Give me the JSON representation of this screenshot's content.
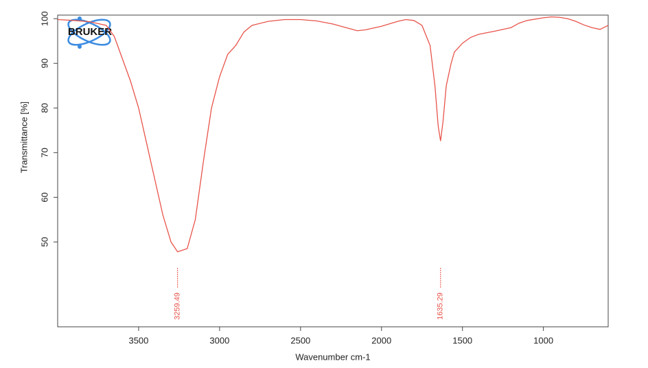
{
  "chart_data": {
    "type": "line",
    "logo": "BRUKER",
    "x_label": "Wavenumber cm-1",
    "y_label": "Transmittance [%]",
    "color": "#e8534a",
    "x": [
      4000,
      3900,
      3800,
      3700,
      3650,
      3600,
      3550,
      3500,
      3450,
      3400,
      3350,
      3300,
      3259.49,
      3200,
      3150,
      3100,
      3050,
      3000,
      2950,
      2900,
      2850,
      2800,
      2700,
      2600,
      2500,
      2400,
      2300,
      2200,
      2150,
      2100,
      2000,
      1900,
      1850,
      1800,
      1750,
      1700,
      1670,
      1650,
      1635.29,
      1620,
      1600,
      1570,
      1550,
      1500,
      1450,
      1400,
      1300,
      1200,
      1150,
      1100,
      1000,
      950,
      900,
      850,
      800,
      750,
      700,
      650,
      600
    ],
    "values": [
      99.8,
      99.6,
      99.3,
      98.5,
      96,
      91,
      86,
      80,
      72,
      64,
      56,
      50,
      47.8,
      48.5,
      55,
      68,
      80,
      87,
      92,
      94,
      97,
      98.5,
      99.4,
      99.8,
      99.8,
      99.5,
      98.8,
      97.8,
      97.3,
      97.5,
      98.3,
      99.4,
      99.8,
      99.6,
      98.5,
      94,
      85,
      76,
      72.6,
      77,
      85,
      90,
      92.5,
      94.5,
      95.8,
      96.5,
      97.2,
      98,
      99,
      99.6,
      100.2,
      100.4,
      100.3,
      100,
      99.4,
      98.6,
      98,
      97.6,
      98.5
    ],
    "peaks": [
      3259.49,
      1635.29
    ],
    "xlim": [
      4000,
      600
    ],
    "xticks": [
      3500,
      3000,
      2500,
      2000,
      1500,
      1000
    ],
    "ylim": [
      31,
      100.8
    ],
    "yticks": [
      50,
      60,
      70,
      80,
      90,
      100
    ]
  }
}
